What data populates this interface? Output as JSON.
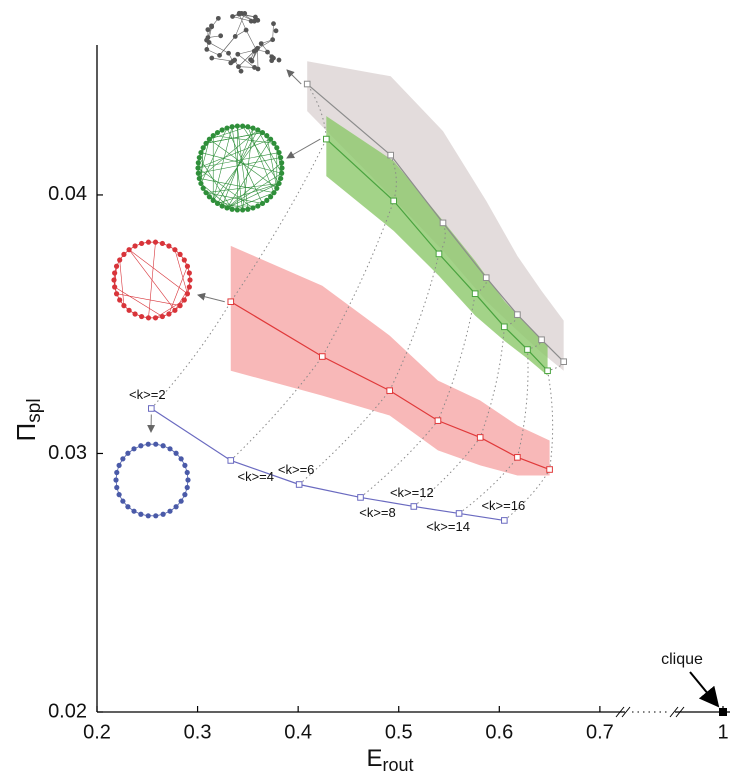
{
  "chart_data": {
    "type": "line",
    "xlabel": {
      "main": "E",
      "sub": "rout"
    },
    "ylabel": {
      "main": "Π",
      "sub": "spl"
    },
    "xlim": [
      0.2,
      1
    ],
    "xbreak": [
      0.72,
      0.99
    ],
    "ylim": [
      0.02,
      0.0458
    ],
    "xticks": [
      0.2,
      0.3,
      0.4,
      0.5,
      0.6,
      0.7,
      1
    ],
    "yticks": [
      0.02,
      0.03,
      0.04
    ],
    "series": [
      {
        "name": "gray",
        "color": "#8c8c8c",
        "band_color": "#dcd3d3",
        "x": [
          0.409,
          0.492,
          0.544,
          0.587,
          0.618,
          0.642,
          0.664
        ],
        "values": [
          0.04429,
          0.04154,
          0.03892,
          0.0368,
          0.03537,
          0.0344,
          0.03355
        ],
        "upper": [
          0.04517,
          0.04459,
          0.04247,
          0.03977,
          0.03764,
          0.03629,
          0.03514
        ],
        "lower": [
          0.04324,
          0.03996,
          0.03784,
          0.0359,
          0.03475,
          0.0339,
          0.0332
        ]
      },
      {
        "name": "green",
        "color": "#4aa33f",
        "band_color": "#8cc86a",
        "x": [
          0.428,
          0.495,
          0.54,
          0.576,
          0.605,
          0.628,
          0.648
        ],
        "values": [
          0.04216,
          0.03977,
          0.03772,
          0.03618,
          0.0349,
          0.03402,
          0.0332
        ],
        "upper": [
          0.04305,
          0.04131,
          0.03919,
          0.03745,
          0.0359,
          0.03494,
          0.03417
        ],
        "lower": [
          0.04073,
          0.03861,
          0.03687,
          0.03533,
          0.03436,
          0.03367,
          0.03301
        ]
      },
      {
        "name": "red",
        "color": "#e0393a",
        "band_color": "#f6a6a6",
        "x": [
          0.333,
          0.424,
          0.491,
          0.539,
          0.581,
          0.618,
          0.65
        ],
        "values": [
          0.03587,
          0.03375,
          0.03243,
          0.03127,
          0.03062,
          0.02985,
          0.02938
        ],
        "upper": [
          0.03803,
          0.03649,
          0.03456,
          0.03282,
          0.03205,
          0.03108,
          0.0305
        ],
        "lower": [
          0.0332,
          0.03224,
          0.03147,
          0.03012,
          0.02954,
          0.02915,
          0.02915
        ]
      },
      {
        "name": "blue",
        "color": "#6a6ac0",
        "x": [
          0.254,
          0.333,
          0.401,
          0.462,
          0.515,
          0.56,
          0.605
        ],
        "values": [
          0.03174,
          0.02973,
          0.0288,
          0.0283,
          0.02795,
          0.02768,
          0.02741
        ],
        "point_labels": [
          "<k>=2",
          "<k>=4",
          "<k>=6",
          "<k>=8",
          "<k>=12",
          "<k>=14",
          "<k>=16"
        ]
      }
    ],
    "clique": {
      "label": "clique",
      "x": 1,
      "value": 0.02
    }
  }
}
